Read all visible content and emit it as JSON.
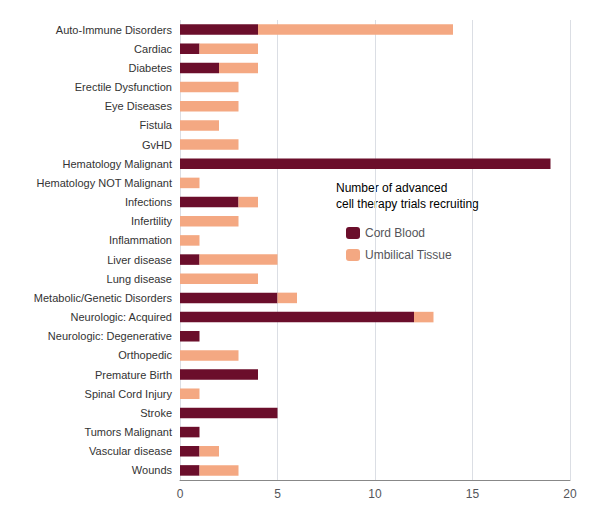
{
  "chart_data": {
    "type": "bar",
    "orientation": "horizontal",
    "stacked": true,
    "categories": [
      "Auto-Immune Disorders",
      "Cardiac",
      "Diabetes",
      "Erectile Dysfunction",
      "Eye Diseases",
      "Fistula",
      "GvHD",
      "Hematology Malignant",
      "Hematology NOT Malignant",
      "Infections",
      "Infertility",
      "Inflammation",
      "Liver disease",
      "Lung disease",
      "Metabolic/Genetic Disorders",
      "Neurologic: Acquired",
      "Neurologic: Degenerative",
      "Orthopedic",
      "Premature Birth",
      "Spinal Cord Injury",
      "Stroke",
      "Tumors Malignant",
      "Vascular disease",
      "Wounds"
    ],
    "series": [
      {
        "name": "Cord Blood",
        "color": "#6B0E2B",
        "values": [
          4,
          1,
          2,
          0,
          0,
          0,
          0,
          19,
          0,
          3,
          0,
          0,
          1,
          0,
          5,
          12,
          1,
          0,
          4,
          0,
          5,
          1,
          1,
          1
        ]
      },
      {
        "name": "Umbilical Tissue",
        "color": "#F4A882",
        "values": [
          10,
          3,
          2,
          3,
          3,
          2,
          3,
          0,
          1,
          1,
          3,
          1,
          4,
          4,
          1,
          1,
          0,
          3,
          0,
          1,
          0,
          0,
          1,
          2
        ]
      }
    ],
    "annotations": [
      "Number of advanced\ncell therapy trials recruiting"
    ],
    "xlim": [
      0,
      20
    ],
    "xticks": [
      0,
      5,
      10,
      15,
      20
    ],
    "grid": true,
    "legend": "right"
  }
}
